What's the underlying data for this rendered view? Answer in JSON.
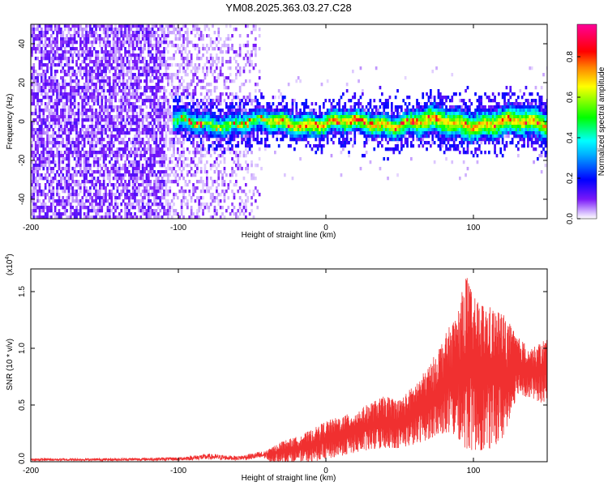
{
  "title": "YM08.2025.363.03.27.C28",
  "chart_data": [
    {
      "type": "heatmap",
      "name": "spectrogram",
      "xlabel": "Height of straight line (km)",
      "ylabel": "Frequency (Hz)",
      "xlim": [
        -200,
        150
      ],
      "ylim": [
        -50,
        50
      ],
      "xticks": [
        -200,
        -100,
        0,
        100
      ],
      "yticks": [
        -40,
        -20,
        0,
        20,
        40
      ],
      "colorbar": {
        "label": "Normalized spectral amplitude",
        "range": [
          0,
          0.96
        ],
        "ticks": [
          "0.0",
          "0.2",
          "0.4",
          "0.6",
          "0.8"
        ],
        "tick_values": [
          0,
          0.2,
          0.4,
          0.6,
          0.8
        ],
        "colormap": [
          "#ffffff",
          "#6600ff",
          "#0000ff",
          "#00ffff",
          "#00ff00",
          "#ffff00",
          "#ff0000",
          "#ff0099"
        ]
      },
      "regions": [
        {
          "x_range": [
            -200,
            -110
          ],
          "freq_range": [
            -50,
            50
          ],
          "amplitude": "~0.05-0.1 (broadband noise)"
        },
        {
          "x_range": [
            -110,
            -45
          ],
          "freq_range": [
            -50,
            50
          ],
          "amplitude": "~0.02-0.05 (sparse noise)"
        },
        {
          "x_range": [
            -105,
            150
          ],
          "freq_center": 0,
          "freq_halfwidth": 6,
          "amplitude": "0.3-0.96 (signal band)"
        }
      ]
    },
    {
      "type": "line",
      "name": "snr",
      "xlabel": "Height of straight line (km)",
      "ylabel": "SNR (10 * v/v)",
      "y_multiplier": "(x10^4)",
      "y_multiplier_base": "(x10",
      "y_multiplier_exp": "4",
      "y_multiplier_close": ")",
      "xlim": [
        -200,
        150
      ],
      "ylim": [
        0,
        1.7
      ],
      "xticks": [
        -200,
        -100,
        0,
        100
      ],
      "yticks": [
        "0.0",
        "0.5",
        "1.0",
        "1.5"
      ],
      "ytick_values": [
        0,
        0.5,
        1.0,
        1.5
      ],
      "color": "#f03030",
      "envelope": {
        "x": [
          -200,
          -150,
          -100,
          -80,
          -60,
          -40,
          -30,
          -20,
          -10,
          0,
          10,
          20,
          30,
          40,
          50,
          60,
          70,
          80,
          90,
          95,
          100,
          110,
          120,
          130,
          140,
          150
        ],
        "upper": [
          0.03,
          0.03,
          0.04,
          0.07,
          0.05,
          0.1,
          0.18,
          0.22,
          0.28,
          0.36,
          0.4,
          0.44,
          0.52,
          0.58,
          0.55,
          0.68,
          0.85,
          1.1,
          1.35,
          1.68,
          1.45,
          1.38,
          1.32,
          1.1,
          1.0,
          1.1
        ],
        "lower": [
          0.0,
          0.0,
          0.0,
          0.0,
          0.0,
          0.0,
          0.0,
          0.0,
          0.0,
          0.02,
          0.05,
          0.08,
          0.1,
          0.12,
          0.12,
          0.15,
          0.2,
          0.25,
          0.2,
          0.1,
          0.1,
          0.1,
          0.2,
          0.6,
          0.55,
          0.5
        ]
      }
    }
  ]
}
